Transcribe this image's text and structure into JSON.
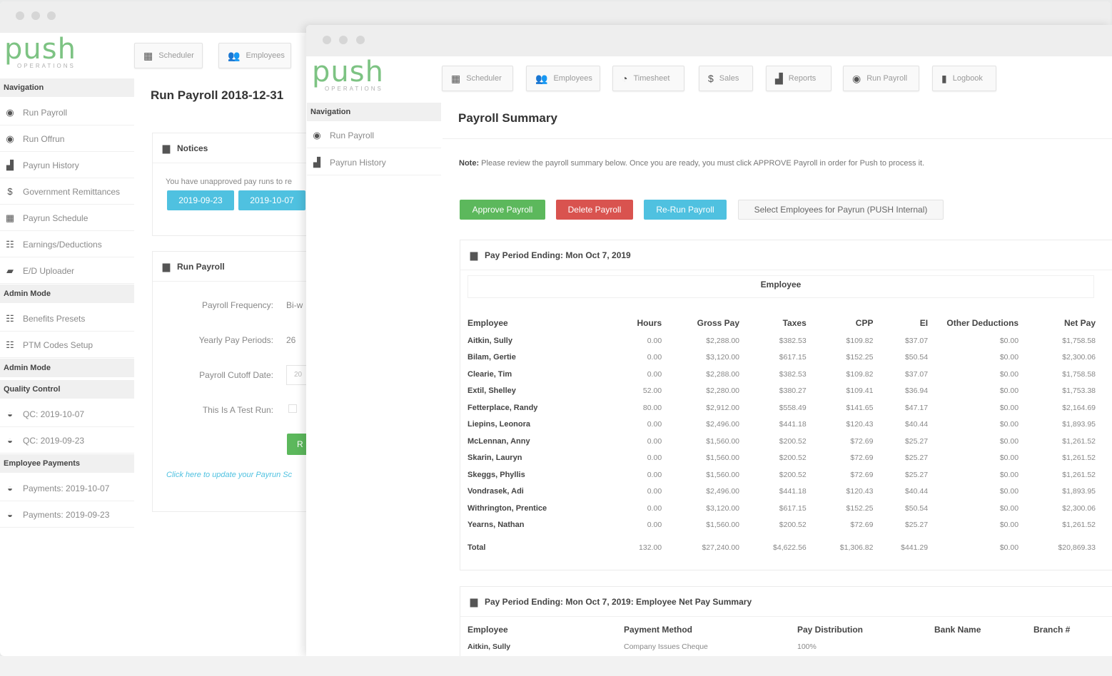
{
  "back_window": {
    "logo": {
      "main": "push",
      "sub": "OPERATIONS"
    },
    "tabs": [
      {
        "label": "Scheduler",
        "icon": "calendar-icon"
      },
      {
        "label": "Employees",
        "icon": "people-icon"
      }
    ],
    "page_title": "Run Payroll 2018-12-31",
    "sidebar": [
      {
        "type": "section",
        "label": "Navigation"
      },
      {
        "type": "item",
        "label": "Run Payroll",
        "icon": "target-icon"
      },
      {
        "type": "item",
        "label": "Run Offrun",
        "icon": "target-icon"
      },
      {
        "type": "item",
        "label": "Payrun History",
        "icon": "chart-icon"
      },
      {
        "type": "item",
        "label": "Government Remittances",
        "icon": "dollar-icon"
      },
      {
        "type": "item",
        "label": "Payrun Schedule",
        "icon": "calendar-icon"
      },
      {
        "type": "item",
        "label": "Earnings/Deductions",
        "icon": "list-icon"
      },
      {
        "type": "item",
        "label": "E/D Uploader",
        "icon": "folder-icon"
      },
      {
        "type": "section",
        "label": "Admin Mode"
      },
      {
        "type": "item",
        "label": "Benefits Presets",
        "icon": "list-icon"
      },
      {
        "type": "item",
        "label": "PTM Codes Setup",
        "icon": "list-icon"
      },
      {
        "type": "section",
        "label": "Admin Mode"
      },
      {
        "type": "section",
        "label": "Quality Control"
      },
      {
        "type": "item",
        "label": "QC: 2019-10-07",
        "icon": "bowl-icon"
      },
      {
        "type": "item",
        "label": "QC: 2019-09-23",
        "icon": "bowl-icon"
      },
      {
        "type": "section",
        "label": "Employee Payments"
      },
      {
        "type": "item",
        "label": "Payments: 2019-10-07",
        "icon": "bowl-icon"
      },
      {
        "type": "item",
        "label": "Payments: 2019-09-23",
        "icon": "bowl-icon"
      }
    ],
    "notices": {
      "title": "Notices",
      "text": "You have unapproved pay runs to re",
      "buttons": [
        "2019-09-23",
        "2019-10-07"
      ]
    },
    "run_payroll": {
      "title": "Run Payroll",
      "fields": [
        {
          "label": "Payroll Frequency:",
          "value": "Bi-w"
        },
        {
          "label": "Yearly Pay Periods:",
          "value": "26"
        },
        {
          "label": "Payroll Cutoff Date:",
          "value": "20"
        },
        {
          "label": "This Is A Test Run:",
          "value": ""
        }
      ],
      "button_label": "R",
      "link_text": "Click here to update your Payrun Sc"
    }
  },
  "front_window": {
    "logo": {
      "main": "push",
      "sub": "OPERATIONS"
    },
    "tabs": [
      {
        "label": "Scheduler",
        "icon": "calendar-icon"
      },
      {
        "label": "Employees",
        "icon": "people-icon"
      },
      {
        "label": "Timesheet",
        "icon": "clock-icon"
      },
      {
        "label": "Sales",
        "icon": "dollar-icon"
      },
      {
        "label": "Reports",
        "icon": "chart-icon"
      },
      {
        "label": "Run Payroll",
        "icon": "target-icon"
      },
      {
        "label": "Logbook",
        "icon": "book-icon"
      }
    ],
    "sidebar": {
      "section": "Navigation",
      "items": [
        {
          "label": "Run Payroll",
          "icon": "target-icon"
        },
        {
          "label": "Payrun History",
          "icon": "chart-icon"
        }
      ]
    },
    "page_title": "Payroll Summary",
    "note_label": "Note:",
    "note_text": "Please review the payroll summary below. Once you are ready, you must click APPROVE Payroll in order for Push to process it.",
    "actions": [
      {
        "label": "Approve Payroll",
        "color": "#5cb85c"
      },
      {
        "label": "Delete Payroll",
        "color": "#d9534f"
      },
      {
        "label": "Re-Run Payroll",
        "color": "#5bc0de"
      },
      {
        "label": "Select Employees for Payrun (PUSH Internal)",
        "color": "#f7f7f7"
      }
    ],
    "period_panel": {
      "title": "Pay Period Ending: Mon Oct 7, 2019",
      "group_header": "Employee",
      "columns": [
        "Employee",
        "Hours",
        "Gross Pay",
        "Taxes",
        "CPP",
        "EI",
        "Other Deductions",
        "Net Pay"
      ],
      "rows": [
        [
          "Aitkin, Sully",
          "0.00",
          "$2,288.00",
          "$382.53",
          "$109.82",
          "$37.07",
          "$0.00",
          "$1,758.58"
        ],
        [
          "Bilam, Gertie",
          "0.00",
          "$3,120.00",
          "$617.15",
          "$152.25",
          "$50.54",
          "$0.00",
          "$2,300.06"
        ],
        [
          "Clearie, Tim",
          "0.00",
          "$2,288.00",
          "$382.53",
          "$109.82",
          "$37.07",
          "$0.00",
          "$1,758.58"
        ],
        [
          "Extil, Shelley",
          "52.00",
          "$2,280.00",
          "$380.27",
          "$109.41",
          "$36.94",
          "$0.00",
          "$1,753.38"
        ],
        [
          "Fetterplace, Randy",
          "80.00",
          "$2,912.00",
          "$558.49",
          "$141.65",
          "$47.17",
          "$0.00",
          "$2,164.69"
        ],
        [
          "Liepins, Leonora",
          "0.00",
          "$2,496.00",
          "$441.18",
          "$120.43",
          "$40.44",
          "$0.00",
          "$1,893.95"
        ],
        [
          "McLennan, Anny",
          "0.00",
          "$1,560.00",
          "$200.52",
          "$72.69",
          "$25.27",
          "$0.00",
          "$1,261.52"
        ],
        [
          "Skarin, Lauryn",
          "0.00",
          "$1,560.00",
          "$200.52",
          "$72.69",
          "$25.27",
          "$0.00",
          "$1,261.52"
        ],
        [
          "Skeggs, Phyllis",
          "0.00",
          "$1,560.00",
          "$200.52",
          "$72.69",
          "$25.27",
          "$0.00",
          "$1,261.52"
        ],
        [
          "Vondrasek, Adi",
          "0.00",
          "$2,496.00",
          "$441.18",
          "$120.43",
          "$40.44",
          "$0.00",
          "$1,893.95"
        ],
        [
          "Withrington, Prentice",
          "0.00",
          "$3,120.00",
          "$617.15",
          "$152.25",
          "$50.54",
          "$0.00",
          "$2,300.06"
        ],
        [
          "Yearns, Nathan",
          "0.00",
          "$1,560.00",
          "$200.52",
          "$72.69",
          "$25.27",
          "$0.00",
          "$1,261.52"
        ]
      ],
      "total": [
        "Total",
        "132.00",
        "$27,240.00",
        "$4,622.56",
        "$1,306.82",
        "$441.29",
        "$0.00",
        "$20,869.33"
      ]
    },
    "net_pay_panel": {
      "title": "Pay Period Ending: Mon Oct 7, 2019: Employee Net Pay Summary",
      "columns": [
        "Employee",
        "Payment Method",
        "Pay Distribution",
        "Bank Name",
        "Branch #"
      ],
      "rows": [
        [
          "Aitkin, Sully",
          "Company Issues Cheque",
          "100%",
          "",
          ""
        ]
      ]
    }
  }
}
